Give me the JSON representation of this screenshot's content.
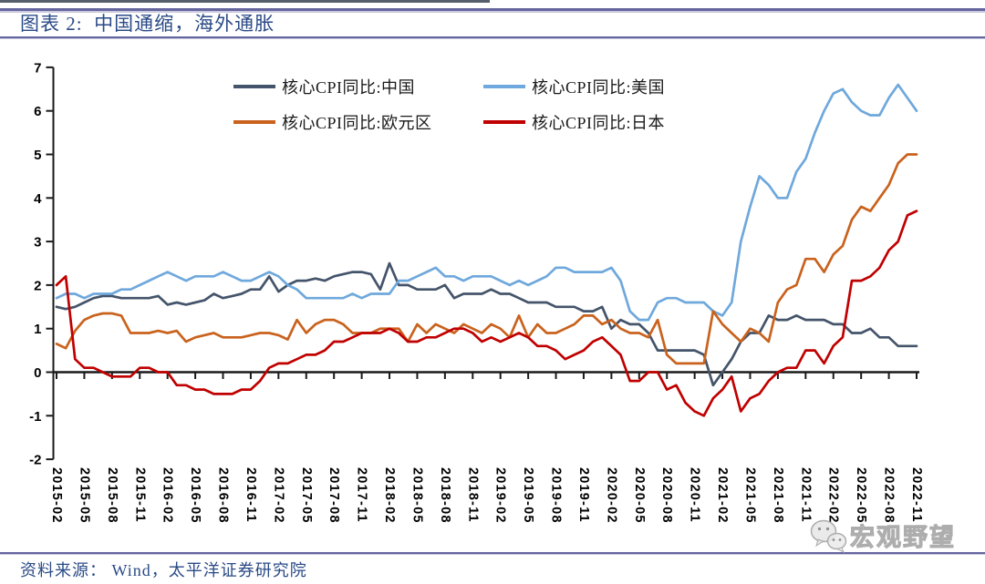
{
  "header": {
    "title": "图表 2:  中国通缩，海外通胀"
  },
  "footer": {
    "source": "资料来源：  Wind，太平洋证券研究院"
  },
  "watermark": {
    "text": "宏观野望",
    "icon": "wechat-icon"
  },
  "colors": {
    "rule_line": "#64649E",
    "top_accent_bar": "#555F6B",
    "axis": "#1A1A1A",
    "title_text": "#2A4A86",
    "china_line": "#44546A",
    "us_line": "#6FA8DC",
    "eurozone_line": "#C9621D",
    "japan_line": "#C00000"
  },
  "chart_data": {
    "type": "line",
    "title": "图表 2: 中国通缩，海外通胀",
    "xlabel": "",
    "ylabel": "",
    "x_frequency": "monthly",
    "x_range": [
      "2015-02",
      "2022-11"
    ],
    "ylim": [
      -2,
      7
    ],
    "y_ticks": [
      7,
      6,
      5,
      4,
      3,
      2,
      1,
      0,
      -1,
      -2
    ],
    "grid": false,
    "legend_position": "top-inside",
    "x_tick_labels": [
      "2015-02",
      "2015-05",
      "2015-08",
      "2015-11",
      "2016-02",
      "2016-05",
      "2016-08",
      "2016-11",
      "2017-02",
      "2017-05",
      "2017-08",
      "2017-11",
      "2018-02",
      "2018-05",
      "2018-08",
      "2018-11",
      "2019-02",
      "2019-05",
      "2019-08",
      "2019-11",
      "2020-02",
      "2020-05",
      "2020-08",
      "2020-11",
      "2021-02",
      "2021-05",
      "2021-08",
      "2021-11",
      "2022-02",
      "2022-05",
      "2022-08",
      "2022-11"
    ],
    "series": [
      {
        "name": "核心CPI同比:中国",
        "color": "#44546A",
        "values": [
          1.5,
          1.45,
          1.5,
          1.6,
          1.7,
          1.75,
          1.75,
          1.7,
          1.7,
          1.7,
          1.7,
          1.75,
          1.55,
          1.6,
          1.55,
          1.6,
          1.65,
          1.8,
          1.7,
          1.75,
          1.8,
          1.9,
          1.9,
          2.2,
          1.85,
          2.0,
          2.1,
          2.1,
          2.15,
          2.1,
          2.2,
          2.25,
          2.3,
          2.3,
          2.25,
          1.9,
          2.5,
          2.0,
          2.0,
          1.9,
          1.9,
          1.9,
          2.0,
          1.7,
          1.8,
          1.8,
          1.8,
          1.9,
          1.8,
          1.8,
          1.7,
          1.6,
          1.6,
          1.6,
          1.5,
          1.5,
          1.5,
          1.4,
          1.4,
          1.5,
          1.0,
          1.2,
          1.1,
          1.1,
          0.9,
          0.5,
          0.5,
          0.5,
          0.5,
          0.5,
          0.4,
          -0.3,
          0.0,
          0.3,
          0.7,
          0.9,
          0.9,
          1.3,
          1.2,
          1.2,
          1.3,
          1.2,
          1.2,
          1.2,
          1.1,
          1.1,
          0.9,
          0.9,
          1.0,
          0.8,
          0.8,
          0.6,
          0.6,
          0.6
        ]
      },
      {
        "name": "核心CPI同比:美国",
        "color": "#6FA8DC",
        "values": [
          1.7,
          1.8,
          1.8,
          1.7,
          1.8,
          1.8,
          1.8,
          1.9,
          1.9,
          2.0,
          2.1,
          2.2,
          2.3,
          2.2,
          2.1,
          2.2,
          2.2,
          2.2,
          2.3,
          2.2,
          2.1,
          2.1,
          2.2,
          2.3,
          2.2,
          2.0,
          1.9,
          1.7,
          1.7,
          1.7,
          1.7,
          1.7,
          1.8,
          1.7,
          1.8,
          1.8,
          1.8,
          2.1,
          2.1,
          2.2,
          2.3,
          2.4,
          2.2,
          2.2,
          2.1,
          2.2,
          2.2,
          2.2,
          2.1,
          2.0,
          2.1,
          2.0,
          2.1,
          2.2,
          2.4,
          2.4,
          2.3,
          2.3,
          2.3,
          2.3,
          2.4,
          2.1,
          1.4,
          1.2,
          1.2,
          1.6,
          1.7,
          1.7,
          1.6,
          1.6,
          1.6,
          1.4,
          1.3,
          1.6,
          3.0,
          3.8,
          4.5,
          4.3,
          4.0,
          4.0,
          4.6,
          4.9,
          5.5,
          6.0,
          6.4,
          6.5,
          6.2,
          6.0,
          5.9,
          5.9,
          6.3,
          6.6,
          6.3,
          6.0
        ]
      },
      {
        "name": "核心CPI同比:欧元区",
        "color": "#C9621D",
        "values": [
          0.65,
          0.55,
          0.95,
          1.2,
          1.3,
          1.35,
          1.35,
          1.3,
          0.9,
          0.9,
          0.9,
          0.95,
          0.9,
          0.95,
          0.7,
          0.8,
          0.85,
          0.9,
          0.8,
          0.8,
          0.8,
          0.85,
          0.9,
          0.9,
          0.85,
          0.75,
          1.2,
          0.9,
          1.1,
          1.2,
          1.2,
          1.1,
          0.9,
          0.9,
          0.9,
          1.0,
          1.0,
          1.0,
          0.7,
          1.1,
          0.9,
          1.1,
          1.0,
          0.9,
          1.1,
          1.0,
          0.9,
          1.1,
          1.0,
          0.8,
          1.3,
          0.8,
          1.1,
          0.9,
          0.9,
          1.0,
          1.1,
          1.3,
          1.3,
          1.1,
          1.2,
          1.0,
          0.9,
          0.9,
          0.8,
          1.2,
          0.4,
          0.2,
          0.2,
          0.2,
          0.2,
          1.4,
          1.1,
          0.9,
          0.7,
          1.0,
          0.9,
          0.7,
          1.6,
          1.9,
          2.0,
          2.6,
          2.6,
          2.3,
          2.7,
          2.9,
          3.5,
          3.8,
          3.7,
          4.0,
          4.3,
          4.8,
          5.0,
          5.0
        ]
      },
      {
        "name": "核心CPI同比:日本",
        "color": "#C00000",
        "values": [
          2.0,
          2.2,
          0.3,
          0.1,
          0.1,
          0.0,
          -0.1,
          -0.1,
          -0.1,
          0.1,
          0.1,
          0.0,
          0.0,
          -0.3,
          -0.3,
          -0.4,
          -0.4,
          -0.5,
          -0.5,
          -0.5,
          -0.4,
          -0.4,
          -0.2,
          0.1,
          0.2,
          0.2,
          0.3,
          0.4,
          0.4,
          0.5,
          0.7,
          0.7,
          0.8,
          0.9,
          0.9,
          0.9,
          1.0,
          0.9,
          0.7,
          0.7,
          0.8,
          0.8,
          0.9,
          1.0,
          1.0,
          0.9,
          0.7,
          0.8,
          0.7,
          0.8,
          0.9,
          0.8,
          0.6,
          0.6,
          0.5,
          0.3,
          0.4,
          0.5,
          0.7,
          0.8,
          0.6,
          0.4,
          -0.2,
          -0.2,
          0.0,
          0.0,
          -0.4,
          -0.3,
          -0.7,
          -0.9,
          -1.0,
          -0.6,
          -0.4,
          -0.1,
          -0.9,
          -0.6,
          -0.5,
          -0.2,
          0.0,
          0.1,
          0.1,
          0.5,
          0.5,
          0.2,
          0.6,
          0.8,
          2.1,
          2.1,
          2.2,
          2.4,
          2.8,
          3.0,
          3.6,
          3.7
        ]
      }
    ]
  }
}
